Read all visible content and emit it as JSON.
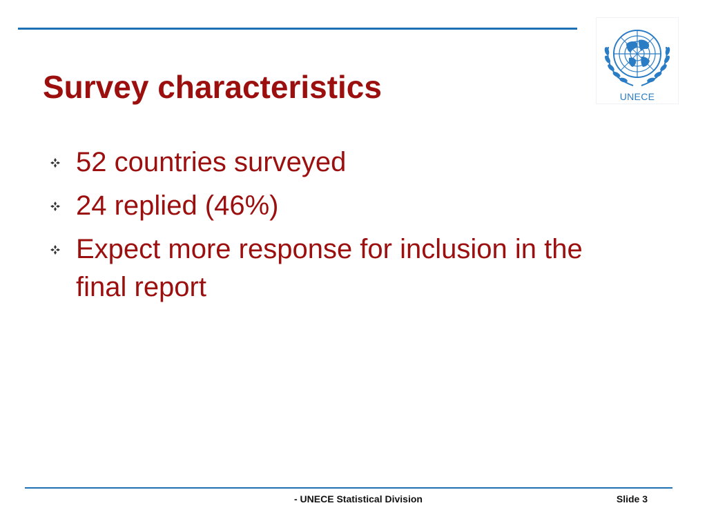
{
  "slide": {
    "title": "Survey characteristics",
    "bullets": [
      {
        "text": "52 countries surveyed"
      },
      {
        "text": "24 replied (46%)"
      },
      {
        "text": "Expect more response for inclusion in the final report"
      }
    ],
    "logo": {
      "text": "UNECE",
      "icon": "un-emblem-icon"
    },
    "footer": {
      "source": "- UNECE Statistical Division",
      "slide_number": "Slide 3"
    }
  },
  "colors": {
    "title": "#9c0f0f",
    "body_text": "#9c0f0f",
    "rule": "#1f6fb5",
    "logo": "#2a7cc4",
    "footer_text": "#111111"
  }
}
